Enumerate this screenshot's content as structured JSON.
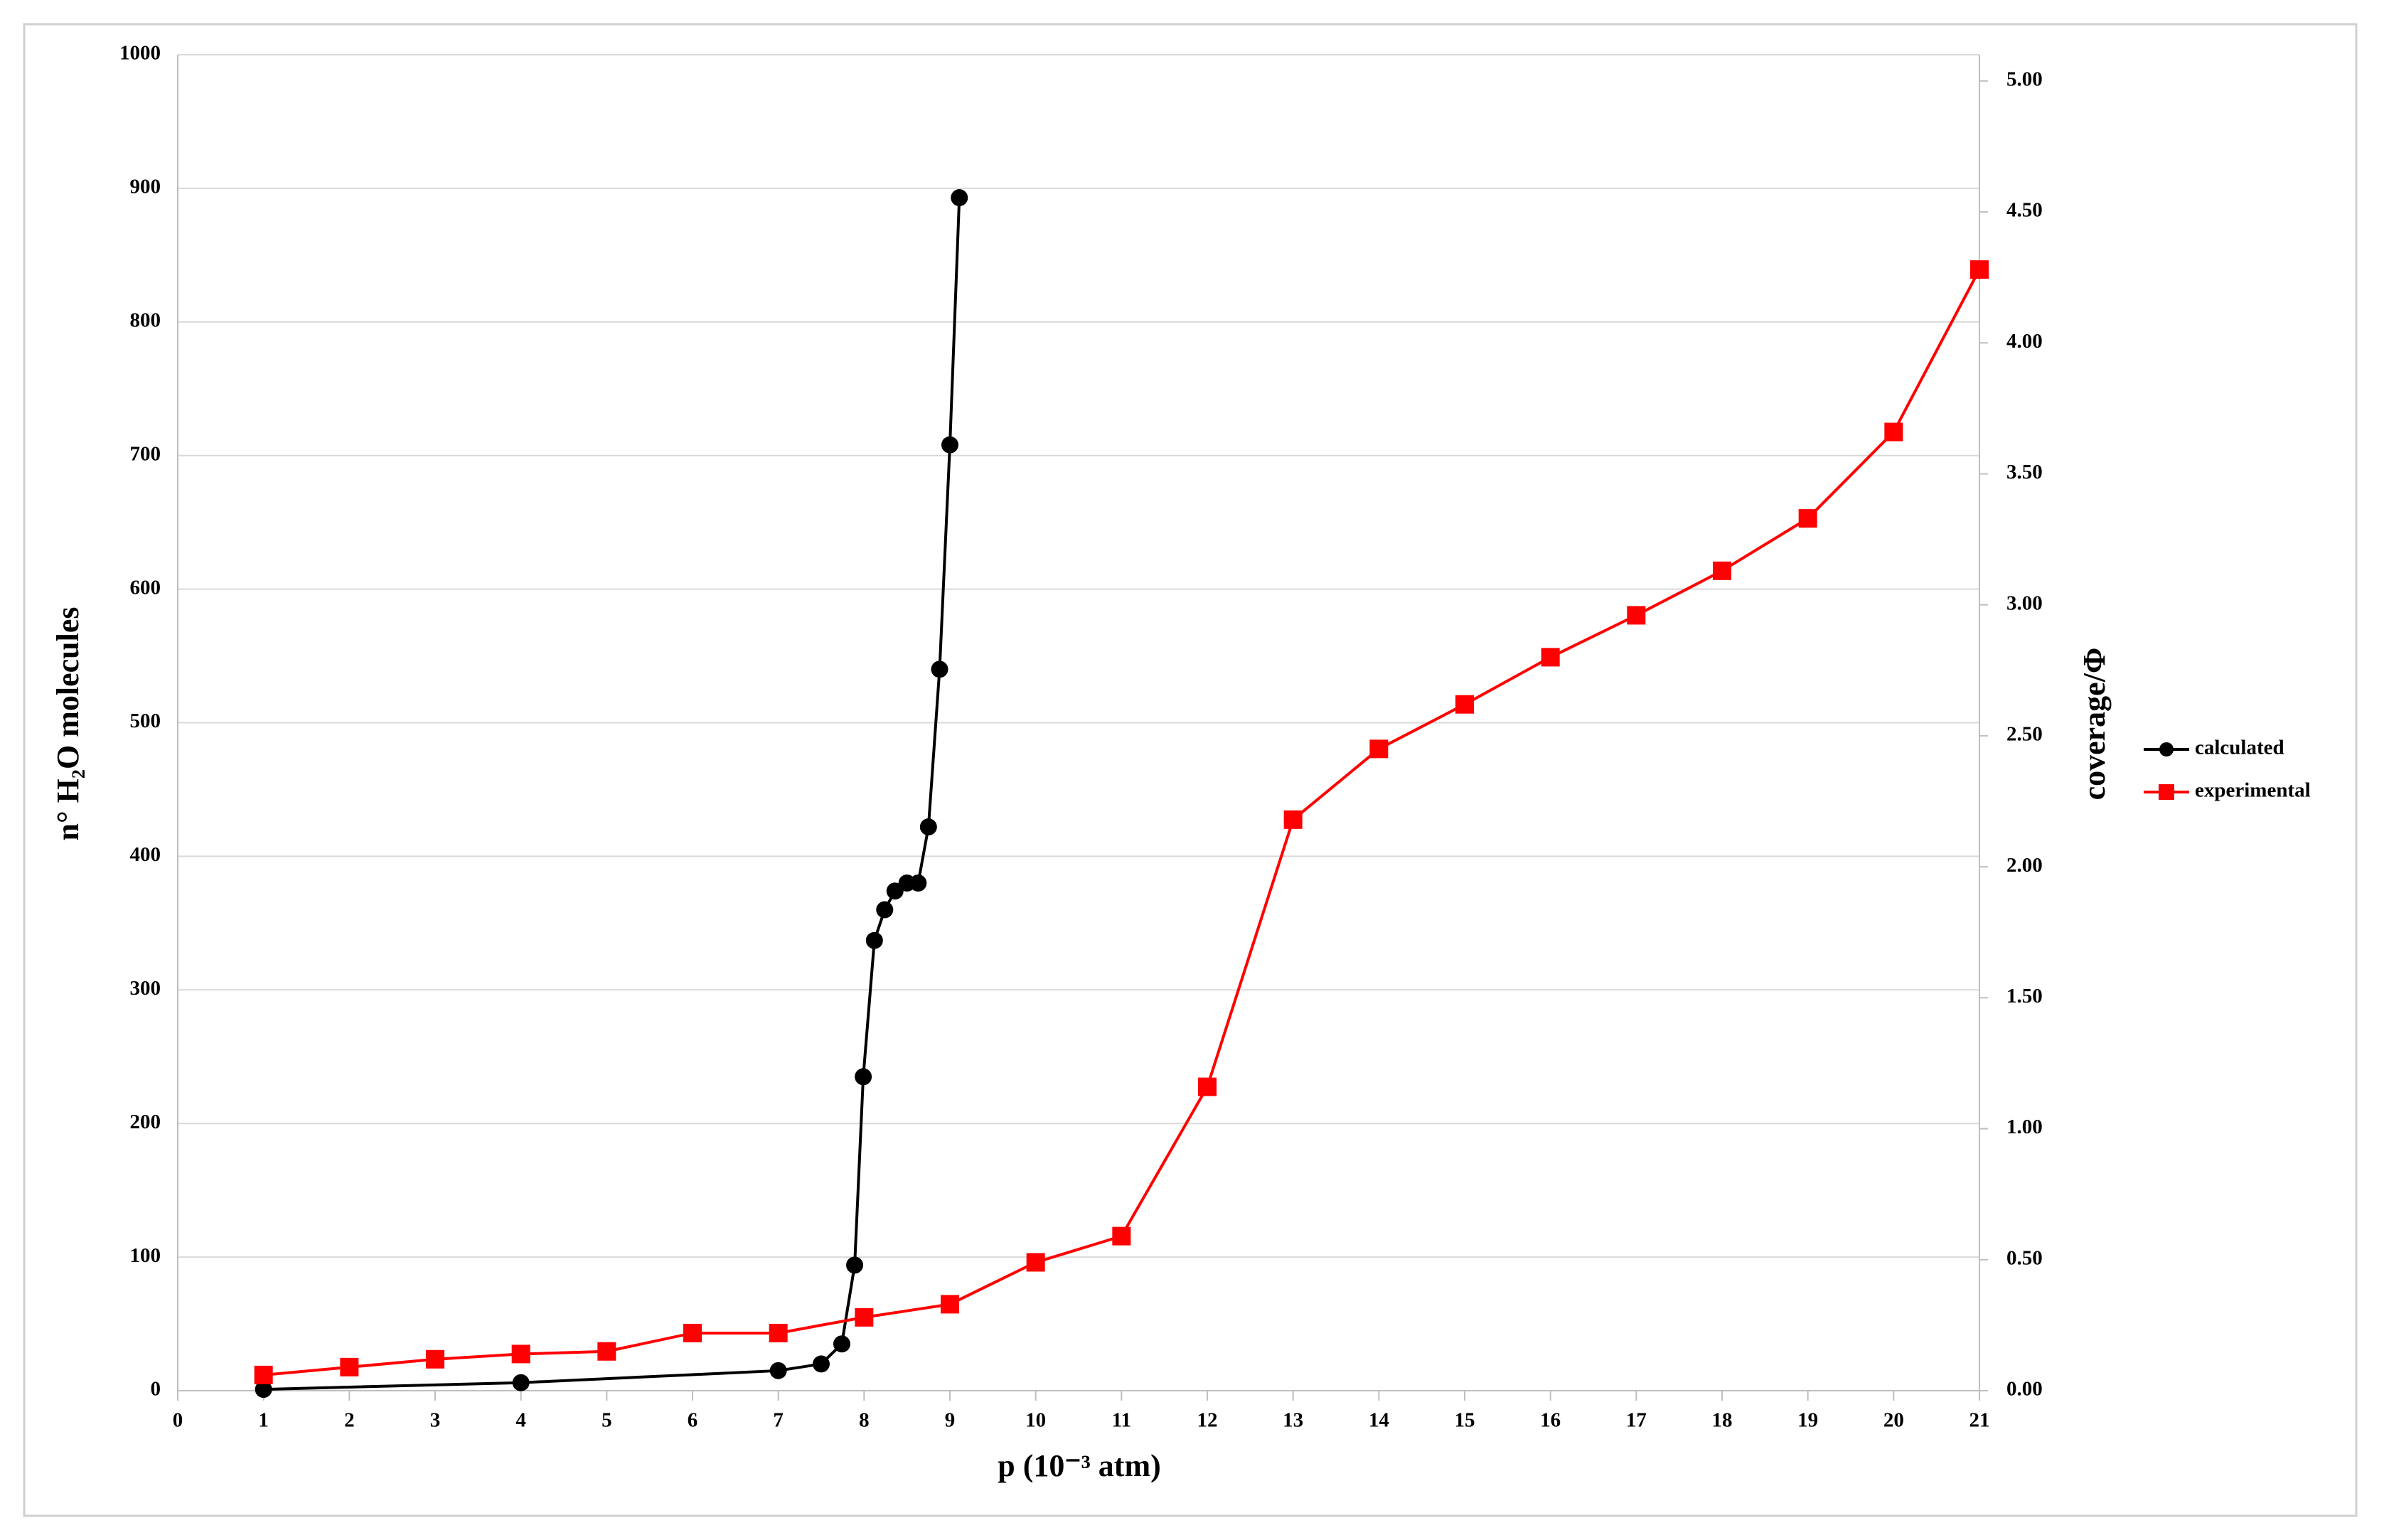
{
  "chart_data": {
    "type": "line",
    "x_label": "p (10⁻³ atm)",
    "y_label": "n° H₂O molecules",
    "y2_label": "coverage/Φ",
    "xlim": [
      0,
      21
    ],
    "xticks": [
      0,
      1,
      2,
      3,
      4,
      5,
      6,
      7,
      8,
      9,
      10,
      11,
      12,
      13,
      14,
      15,
      16,
      17,
      18,
      19,
      20,
      21
    ],
    "ylim": [
      0,
      1000
    ],
    "yticks": [
      0,
      100,
      200,
      300,
      400,
      500,
      600,
      700,
      800,
      900,
      1000
    ],
    "y2lim": [
      0,
      5.1
    ],
    "y2ticks": [
      {
        "value": 0,
        "label": "0.00"
      },
      {
        "value": 0.5,
        "label": "0.50"
      },
      {
        "value": 1,
        "label": "1.00"
      },
      {
        "value": 1.5,
        "label": "1.50"
      },
      {
        "value": 2,
        "label": "2.00"
      },
      {
        "value": 2.5,
        "label": "2.50"
      },
      {
        "value": 3,
        "label": "3.00"
      },
      {
        "value": 3.5,
        "label": "3.50"
      },
      {
        "value": 4,
        "label": "4.00"
      },
      {
        "value": 4.5,
        "label": "4.50"
      },
      {
        "value": 5,
        "label": "5.00"
      }
    ],
    "grid": true,
    "legend": "right",
    "series": [
      {
        "name": "calculated",
        "color": "#000000",
        "marker": "circle",
        "x": [
          1,
          4,
          7,
          7.5,
          7.74,
          7.89,
          7.99,
          8.12,
          8.24,
          8.36,
          8.5,
          8.63,
          8.75,
          8.88,
          9.0,
          9.11
        ],
        "values": [
          1,
          6,
          15,
          20,
          35,
          94,
          235,
          337,
          360,
          374,
          380,
          380,
          422,
          540,
          708,
          893
        ]
      },
      {
        "name": "experimental",
        "color": "#ff0000",
        "marker": "square",
        "axis": "y2",
        "x": [
          1,
          2,
          3,
          4,
          5,
          6,
          7,
          8,
          9,
          10,
          11,
          12,
          13,
          14,
          15,
          16,
          17,
          18,
          19,
          20,
          21
        ],
        "values": [
          0.06,
          0.09,
          0.12,
          0.14,
          0.15,
          0.22,
          0.22,
          0.28,
          0.33,
          0.49,
          0.59,
          1.16,
          2.18,
          2.45,
          2.62,
          2.8,
          2.96,
          3.13,
          3.33,
          3.66,
          4.28
        ]
      }
    ]
  }
}
